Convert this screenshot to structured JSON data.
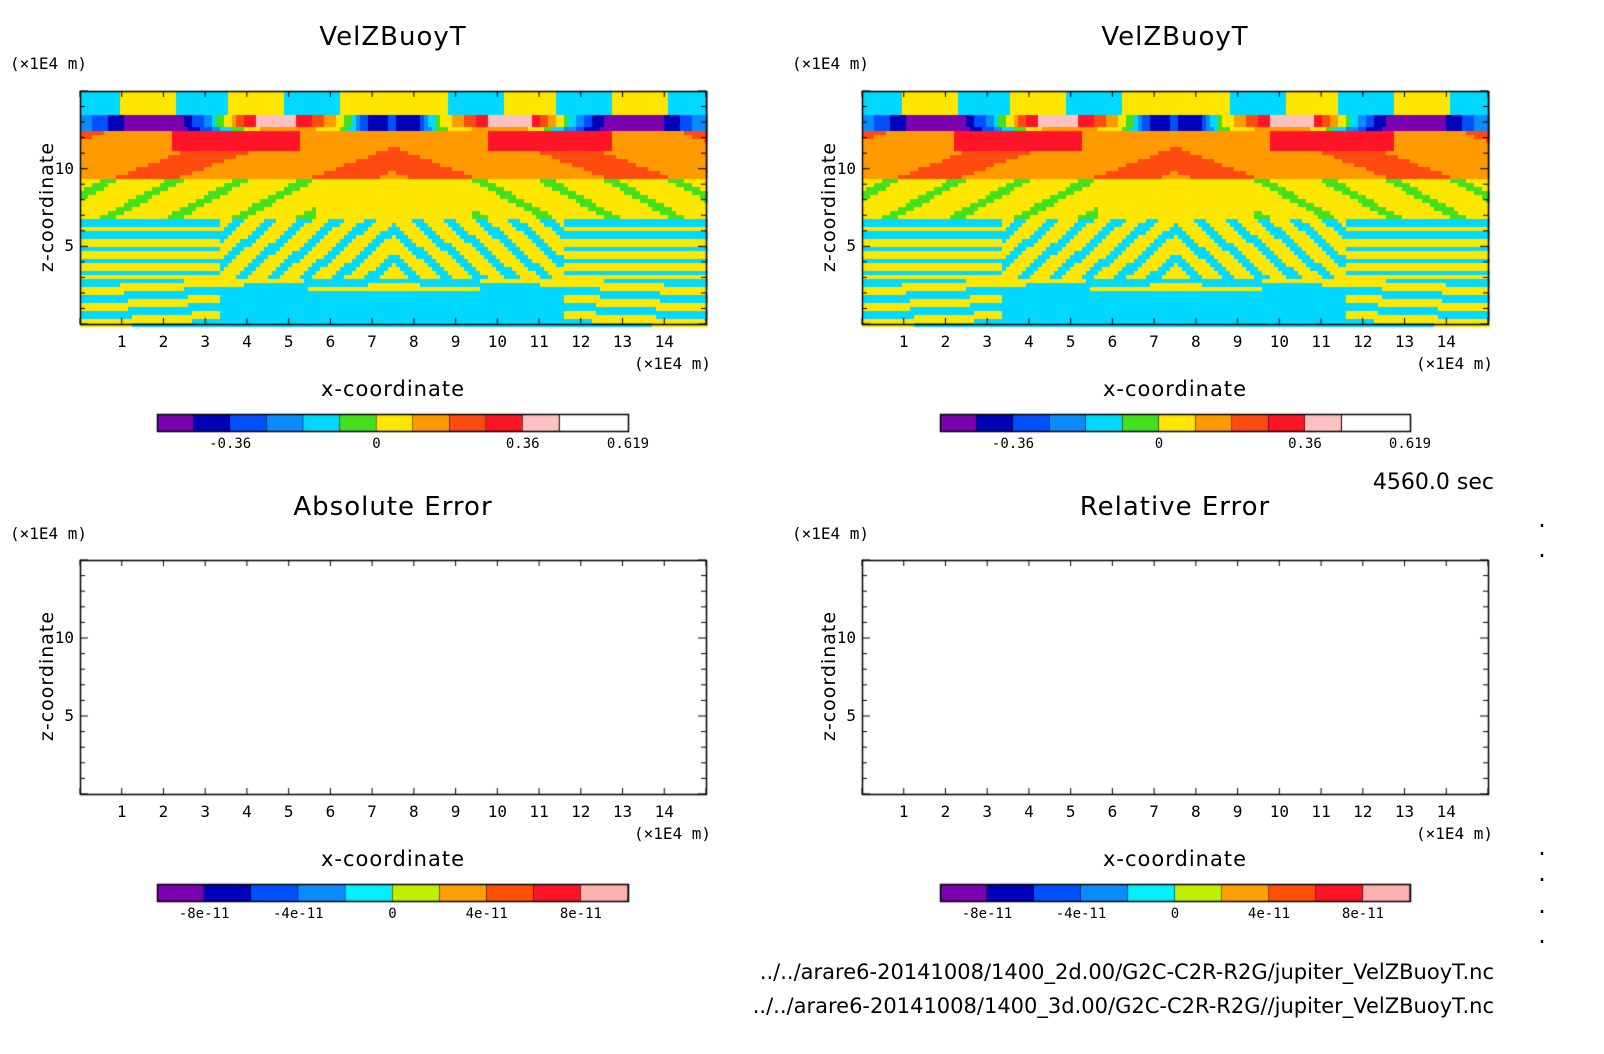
{
  "timestamp": "4560.0 sec",
  "files": [
    "../../arare6-20141008/1400_2d.00/G2C-C2R-R2G/jupiter_VelZBuoyT.nc",
    "../../arare6-20141008/1400_3d.00/G2C-C2R-R2G//jupiter_VelZBuoyT.nc"
  ],
  "chart_data": [
    {
      "type": "heatmap",
      "title": "VelZBuoyT",
      "xlabel": "x-coordinate",
      "ylabel": "z-coordinate",
      "x_unit": "(×1E4 m)",
      "y_unit": "(×1E4 m)",
      "xlim": [
        0,
        15
      ],
      "ylim": [
        0,
        15
      ],
      "x_ticks": [
        "1",
        "2",
        "3",
        "4",
        "5",
        "6",
        "7",
        "8",
        "9",
        "10",
        "11",
        "12",
        "13",
        "14"
      ],
      "y_ticks": [
        "5",
        "10"
      ],
      "colorbar": {
        "levels": [
          -0.54,
          -0.45,
          -0.36,
          -0.27,
          -0.18,
          -0.09,
          0,
          0.09,
          0.18,
          0.27,
          0.36,
          0.45,
          0.54,
          0.619
        ],
        "colors": [
          "#7b00b0",
          "#0000b8",
          "#0050ff",
          "#0a8cff",
          "#00d8ff",
          "#44e01e",
          "#ffe600",
          "#ff9a00",
          "#ff4a10",
          "#ff1428",
          "#ffc0c0"
        ],
        "tick_labels": [
          {
            "value": -0.36,
            "label": "-0.36"
          },
          {
            "value": 0,
            "label": "0"
          },
          {
            "value": 0.36,
            "label": "0.36"
          },
          {
            "value": 0.619,
            "label": "0.619"
          }
        ]
      },
      "has_field": true
    },
    {
      "type": "heatmap",
      "title": "VelZBuoyT",
      "xlabel": "x-coordinate",
      "ylabel": "z-coordinate",
      "x_unit": "(×1E4 m)",
      "y_unit": "(×1E4 m)",
      "xlim": [
        0,
        15
      ],
      "ylim": [
        0,
        15
      ],
      "x_ticks": [
        "1",
        "2",
        "3",
        "4",
        "5",
        "6",
        "7",
        "8",
        "9",
        "10",
        "11",
        "12",
        "13",
        "14"
      ],
      "y_ticks": [
        "5",
        "10"
      ],
      "colorbar": {
        "levels": [
          -0.54,
          -0.45,
          -0.36,
          -0.27,
          -0.18,
          -0.09,
          0,
          0.09,
          0.18,
          0.27,
          0.36,
          0.45,
          0.54,
          0.619
        ],
        "colors": [
          "#7b00b0",
          "#0000b8",
          "#0050ff",
          "#0a8cff",
          "#00d8ff",
          "#44e01e",
          "#ffe600",
          "#ff9a00",
          "#ff4a10",
          "#ff1428",
          "#ffc0c0"
        ],
        "tick_labels": [
          {
            "value": -0.36,
            "label": "-0.36"
          },
          {
            "value": 0,
            "label": "0"
          },
          {
            "value": 0.36,
            "label": "0.36"
          },
          {
            "value": 0.619,
            "label": "0.619"
          }
        ]
      },
      "has_field": true
    },
    {
      "type": "heatmap",
      "title": "Absolute Error",
      "xlabel": "x-coordinate",
      "ylabel": "z-coordinate",
      "x_unit": "(×1E4 m)",
      "y_unit": "(×1E4 m)",
      "xlim": [
        0,
        15
      ],
      "ylim": [
        0,
        15
      ],
      "x_ticks": [
        "1",
        "2",
        "3",
        "4",
        "5",
        "6",
        "7",
        "8",
        "9",
        "10",
        "11",
        "12",
        "13",
        "14"
      ],
      "y_ticks": [
        "5",
        "10"
      ],
      "colorbar": {
        "levels": [
          -1e-10,
          -8e-11,
          -6e-11,
          -4e-11,
          -2e-11,
          0,
          2e-11,
          4e-11,
          6e-11,
          8e-11,
          1e-10
        ],
        "colors": [
          "#7b00b0",
          "#0000b8",
          "#0050ff",
          "#0a8cff",
          "#00f0ff",
          "#c0f000",
          "#ffa000",
          "#ff5000",
          "#ff1428",
          "#ffb0b0"
        ],
        "tick_labels": [
          {
            "value": -8e-11,
            "label": "-8e-11"
          },
          {
            "value": -4e-11,
            "label": "-4e-11"
          },
          {
            "value": 0,
            "label": "0"
          },
          {
            "value": 4e-11,
            "label": "4e-11"
          },
          {
            "value": 8e-11,
            "label": "8e-11"
          }
        ]
      },
      "has_field": false
    },
    {
      "type": "heatmap",
      "title": "Relative Error",
      "xlabel": "x-coordinate",
      "ylabel": "z-coordinate",
      "x_unit": "(×1E4 m)",
      "y_unit": "(×1E4 m)",
      "xlim": [
        0,
        15
      ],
      "ylim": [
        0,
        15
      ],
      "x_ticks": [
        "1",
        "2",
        "3",
        "4",
        "5",
        "6",
        "7",
        "8",
        "9",
        "10",
        "11",
        "12",
        "13",
        "14"
      ],
      "y_ticks": [
        "5",
        "10"
      ],
      "colorbar": {
        "levels": [
          -1e-10,
          -8e-11,
          -6e-11,
          -4e-11,
          -2e-11,
          0,
          2e-11,
          4e-11,
          6e-11,
          8e-11,
          1e-10
        ],
        "colors": [
          "#7b00b0",
          "#0000b8",
          "#0050ff",
          "#0a8cff",
          "#00f0ff",
          "#c0f000",
          "#ffa000",
          "#ff5000",
          "#ff1428",
          "#ffb0b0"
        ],
        "tick_labels": [
          {
            "value": -8e-11,
            "label": "-8e-11"
          },
          {
            "value": -4e-11,
            "label": "-4e-11"
          },
          {
            "value": 0,
            "label": "0"
          },
          {
            "value": 4e-11,
            "label": "4e-11"
          },
          {
            "value": 8e-11,
            "label": "8e-11"
          }
        ]
      },
      "has_field": false
    }
  ]
}
